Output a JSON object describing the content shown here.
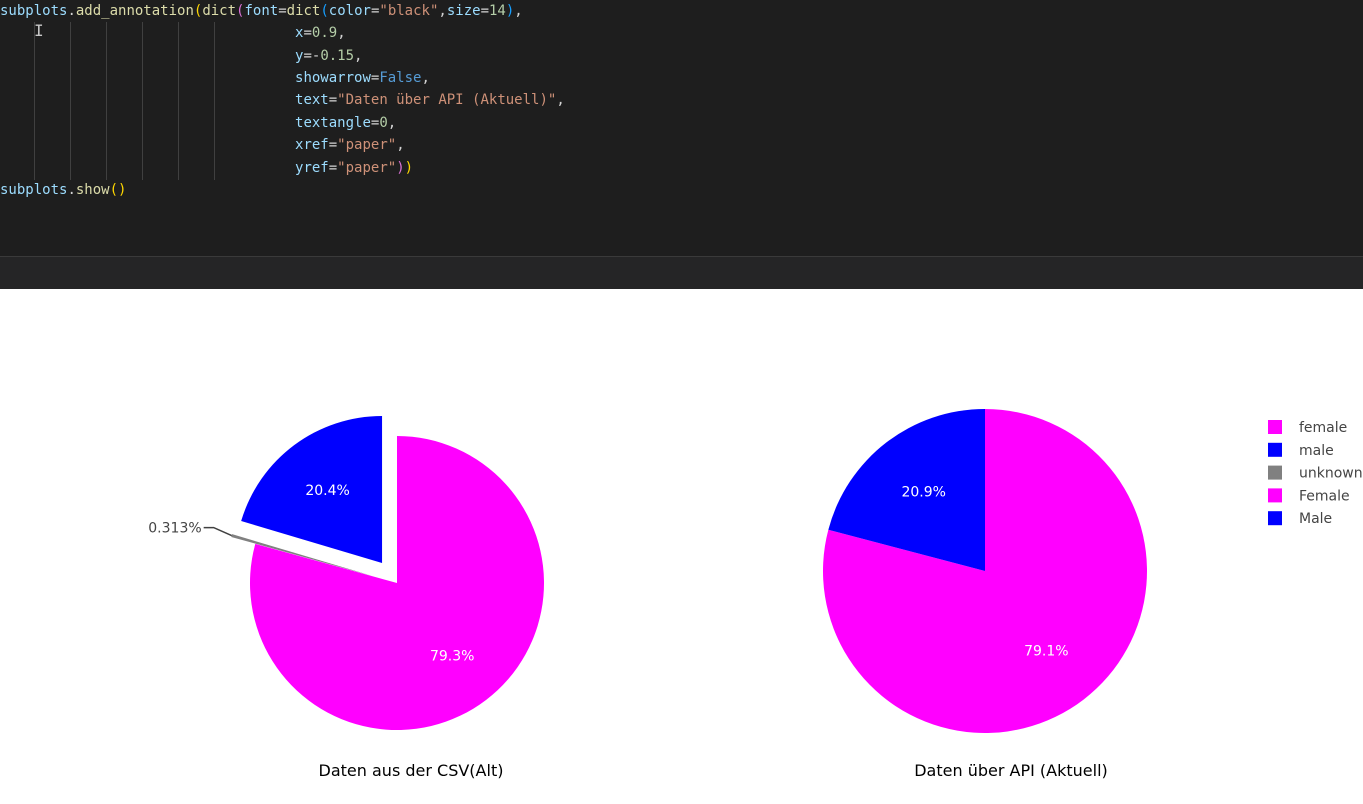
{
  "editor": {
    "lines": [
      [
        [
          "subplots",
          "var"
        ],
        [
          ".",
          "op"
        ],
        [
          "add_annotation",
          "fn"
        ],
        [
          "(",
          "p1"
        ],
        [
          "dict",
          "fn"
        ],
        [
          "(",
          "p2"
        ],
        [
          "font",
          "var"
        ],
        [
          "=",
          "op"
        ],
        [
          "dict",
          "fn"
        ],
        [
          "(",
          "p3"
        ],
        [
          "color",
          "var"
        ],
        [
          "=",
          "op"
        ],
        [
          "\"black\"",
          "str"
        ],
        [
          ",",
          "op"
        ],
        [
          "size",
          "var"
        ],
        [
          "=",
          "op"
        ],
        [
          "14",
          "num"
        ],
        [
          ")",
          "p3"
        ],
        [
          ",",
          "op"
        ]
      ],
      [
        [
          "                                   ",
          "op"
        ],
        [
          "x",
          "var"
        ],
        [
          "=",
          "op"
        ],
        [
          "0.9",
          "num"
        ],
        [
          ",",
          "op"
        ]
      ],
      [
        [
          "                                   ",
          "op"
        ],
        [
          "y",
          "var"
        ],
        [
          "=-",
          "op"
        ],
        [
          "0.15",
          "num"
        ],
        [
          ",",
          "op"
        ]
      ],
      [
        [
          "                                   ",
          "op"
        ],
        [
          "showarrow",
          "var"
        ],
        [
          "=",
          "op"
        ],
        [
          "False",
          "kw"
        ],
        [
          ",",
          "op"
        ]
      ],
      [
        [
          "                                   ",
          "op"
        ],
        [
          "text",
          "var"
        ],
        [
          "=",
          "op"
        ],
        [
          "\"Daten über API (Aktuell)\"",
          "str"
        ],
        [
          ",",
          "op"
        ]
      ],
      [
        [
          "                                   ",
          "op"
        ],
        [
          "textangle",
          "var"
        ],
        [
          "=",
          "op"
        ],
        [
          "0",
          "num"
        ],
        [
          ",",
          "op"
        ]
      ],
      [
        [
          "                                   ",
          "op"
        ],
        [
          "xref",
          "var"
        ],
        [
          "=",
          "op"
        ],
        [
          "\"paper\"",
          "str"
        ],
        [
          ",",
          "op"
        ]
      ],
      [
        [
          "                                   ",
          "op"
        ],
        [
          "yref",
          "var"
        ],
        [
          "=",
          "op"
        ],
        [
          "\"paper\"",
          "str"
        ],
        [
          ")",
          "p2"
        ],
        [
          ")",
          "p1"
        ]
      ],
      [
        [
          "subplots",
          "var"
        ],
        [
          ".",
          "op"
        ],
        [
          "show",
          "fn"
        ],
        [
          "()",
          "p1"
        ]
      ]
    ],
    "caret_glyph": "I"
  },
  "colors": {
    "female": "#ff00ff",
    "male": "#0000ff",
    "unknown": "#808080",
    "Female": "#ff00ff",
    "Male": "#0000ff"
  },
  "chart_data": [
    {
      "type": "pie",
      "annotation": "Daten aus der CSV(Alt)",
      "slices": [
        {
          "label": "female",
          "value": 79.3,
          "text": "79.3%",
          "pulled": false
        },
        {
          "label": "unknown",
          "value": 0.313,
          "text": "0.313%",
          "pulled": true
        },
        {
          "label": "male",
          "value": 20.4,
          "text": "20.4%",
          "pulled": true
        }
      ]
    },
    {
      "type": "pie",
      "annotation": "Daten über API (Aktuell)",
      "slices": [
        {
          "label": "Female",
          "value": 79.1,
          "text": "79.1%",
          "pulled": false
        },
        {
          "label": "Male",
          "value": 20.9,
          "text": "20.9%",
          "pulled": false
        }
      ]
    }
  ],
  "legend": {
    "placement": "top-right",
    "items": [
      {
        "label": "female",
        "color": "#ff00ff"
      },
      {
        "label": "male",
        "color": "#0000ff"
      },
      {
        "label": "unknown",
        "color": "#808080"
      },
      {
        "label": "Female",
        "color": "#ff00ff"
      },
      {
        "label": "Male",
        "color": "#0000ff"
      }
    ]
  }
}
